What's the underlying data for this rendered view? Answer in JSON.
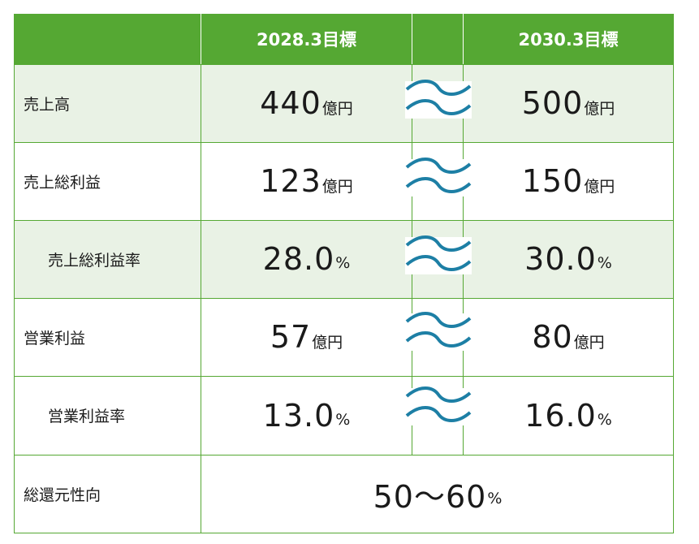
{
  "header": {
    "col1": "2028.3目標",
    "col2": "2030.3目標"
  },
  "rows": [
    {
      "label": "売上高",
      "v1": "440",
      "u1": "億円",
      "v2": "500",
      "u2": "億円"
    },
    {
      "label": "売上総利益",
      "v1": "123",
      "u1": "億円",
      "v2": "150",
      "u2": "億円"
    },
    {
      "label": "売上総利益率",
      "v1": "28.0",
      "u1": "%",
      "v2": "30.0",
      "u2": "%"
    },
    {
      "label": "営業利益",
      "v1": "57",
      "u1": "億円",
      "v2": "80",
      "u2": "億円"
    },
    {
      "label": "営業利益率",
      "v1": "13.0",
      "u1": "%",
      "v2": "16.0",
      "u2": "%"
    }
  ],
  "payout": {
    "label": "総還元性向",
    "value": "50～60",
    "unit": "%"
  },
  "colors": {
    "header_green": "#55a833",
    "row_tint": "#e9f2e5",
    "wave_blue": "#1d7fa5"
  }
}
